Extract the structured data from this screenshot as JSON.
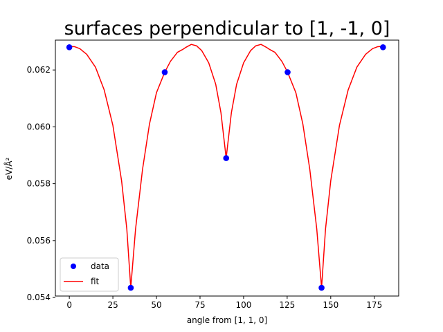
{
  "chart_data": {
    "type": "line",
    "title": "surfaces perpendicular to [1, -1, 0]",
    "xlabel": "angle from [1, 1, 0]",
    "ylabel": "eV/Å²",
    "xlim": [
      -8,
      189
    ],
    "ylim": [
      0.05405,
      0.06305
    ],
    "xticks": [
      0,
      25,
      50,
      75,
      100,
      125,
      150,
      175
    ],
    "yticks": [
      0.054,
      0.056,
      0.058,
      0.06,
      0.062
    ],
    "ytick_labels": [
      "0.054",
      "0.056",
      "0.058",
      "0.060",
      "0.062"
    ],
    "grid": false,
    "legend_position": "lower-left",
    "series": [
      {
        "name": "data",
        "kind": "scatter",
        "color": "#0000ff",
        "x": [
          0,
          35.26,
          54.74,
          90,
          125.26,
          144.74,
          180
        ],
        "y": [
          0.0628,
          0.05434,
          0.06192,
          0.0589,
          0.06192,
          0.05434,
          0.0628
        ]
      },
      {
        "name": "fit",
        "kind": "line",
        "color": "#ff0000",
        "x": [
          0,
          3,
          6,
          10,
          15,
          20,
          25,
          30,
          33,
          35.26,
          38,
          42,
          46,
          50,
          54.74,
          58,
          62,
          65,
          67,
          70,
          73,
          76,
          80,
          84,
          87,
          90,
          93,
          96,
          100,
          104,
          107,
          110,
          113,
          115,
          118,
          122,
          125.26,
          130,
          134,
          138,
          142,
          144.74,
          147,
          150,
          155,
          160,
          165,
          170,
          174,
          177,
          180
        ],
        "y": [
          0.06283,
          0.06282,
          0.06275,
          0.06255,
          0.0621,
          0.0613,
          0.06005,
          0.0581,
          0.0564,
          0.05434,
          0.0564,
          0.0585,
          0.0601,
          0.0612,
          0.06192,
          0.0623,
          0.06262,
          0.06272,
          0.0628,
          0.0629,
          0.06285,
          0.06268,
          0.06225,
          0.0615,
          0.0605,
          0.0589,
          0.0605,
          0.0615,
          0.06225,
          0.06268,
          0.06285,
          0.0629,
          0.0628,
          0.06272,
          0.06262,
          0.0623,
          0.06192,
          0.0612,
          0.0601,
          0.0585,
          0.0564,
          0.05434,
          0.0564,
          0.0581,
          0.06005,
          0.0613,
          0.0621,
          0.06255,
          0.06275,
          0.06282,
          0.06283
        ]
      }
    ]
  }
}
